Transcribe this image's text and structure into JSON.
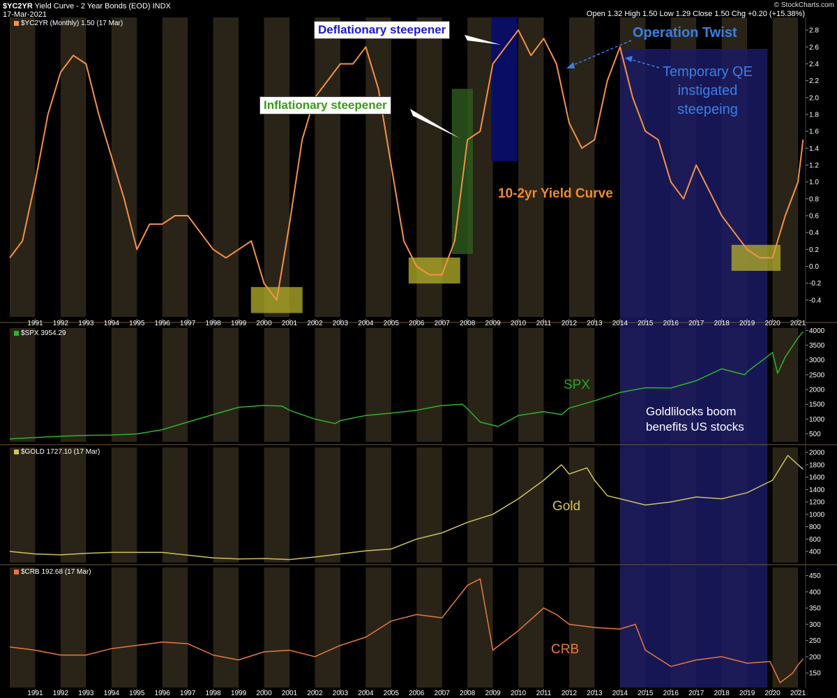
{
  "header": {
    "symbol": "$YC2YR",
    "description": "Yield Curve - 2 Year Bonds (EOD)",
    "exchange": "INDX",
    "date": "17-Mar-2021",
    "ohlc": "Open 1.32  High 1.50  Low 1.29  Close 1.50  Chg +0.20 (+15.38%)",
    "logo": "© StockCharts.com"
  },
  "colors": {
    "background": "#000000",
    "band": "#2a2418",
    "yield": "#f6914a",
    "spx": "#2bb52b",
    "gold": "#cfc35a",
    "crb": "#e8783d",
    "deflation_box": "#0a0f6e",
    "inflation_box": "#2f5d1d",
    "yellow_box": "#b6b12a",
    "qe_zone": "#1b1a63"
  },
  "panels": {
    "yield": {
      "label": "$YC2YR (Monthly) 1.50 (17 Mar)"
    },
    "spx": {
      "label": "$SPX 3954.29"
    },
    "gold": {
      "label": "$GOLD 1727.10 (17 Mar)"
    },
    "crb": {
      "label": "$CRB 192.68 (17 Mar)"
    }
  },
  "annotations": {
    "deflationary": "Deflationary steepener",
    "inflationary": "Inflationary steepener",
    "operation_twist": "Operation Twist",
    "temporary_qe": [
      "Temporary QE",
      "instigated",
      "steepeing"
    ],
    "yield_curve": "10-2yr Yield Curve",
    "spx": "SPX",
    "goldilocks": [
      "Goldlilocks boom",
      "benefits US stocks"
    ],
    "gold": "Gold",
    "crb": "CRB"
  },
  "chart_data": [
    {
      "type": "line",
      "title": "$YC2YR (Monthly) 1.50 (17 Mar)",
      "x": [
        1990.0,
        1990.5,
        1991.0,
        1991.5,
        1992.0,
        1992.5,
        1993.0,
        1993.5,
        1994.0,
        1994.5,
        1995.0,
        1995.5,
        1996.0,
        1996.5,
        1997.0,
        1997.5,
        1998.0,
        1998.5,
        1999.0,
        1999.5,
        2000.0,
        2000.5,
        2001.0,
        2001.5,
        2002.0,
        2002.5,
        2003.0,
        2003.5,
        2004.0,
        2004.5,
        2005.0,
        2005.5,
        2006.0,
        2006.5,
        2007.0,
        2007.5,
        2008.0,
        2008.5,
        2009.0,
        2009.5,
        2010.0,
        2010.5,
        2011.0,
        2011.5,
        2012.0,
        2012.5,
        2013.0,
        2013.5,
        2014.0,
        2014.5,
        2015.0,
        2015.5,
        2016.0,
        2016.5,
        2017.0,
        2017.5,
        2018.0,
        2018.5,
        2019.0,
        2019.5,
        2020.0,
        2020.5,
        2021.0,
        2021.2
      ],
      "values": [
        0.1,
        0.3,
        1.0,
        1.8,
        2.3,
        2.5,
        2.4,
        1.8,
        1.3,
        0.8,
        0.2,
        0.5,
        0.5,
        0.6,
        0.6,
        0.4,
        0.2,
        0.1,
        0.2,
        0.3,
        -0.2,
        -0.4,
        0.5,
        1.5,
        2.0,
        2.2,
        2.4,
        2.4,
        2.6,
        2.1,
        1.2,
        0.3,
        0.0,
        -0.1,
        -0.1,
        0.3,
        1.5,
        1.6,
        2.4,
        2.6,
        2.8,
        2.5,
        2.7,
        2.4,
        1.7,
        1.4,
        1.5,
        2.2,
        2.6,
        2.0,
        1.6,
        1.5,
        1.0,
        0.8,
        1.2,
        0.9,
        0.6,
        0.4,
        0.2,
        0.1,
        0.1,
        0.6,
        1.0,
        1.5
      ],
      "xlim": [
        1990,
        2021.3
      ],
      "ylim": [
        -0.6,
        2.95
      ],
      "yticks": [
        -0.4,
        -0.2,
        0.0,
        0.2,
        0.4,
        0.6,
        0.8,
        1.0,
        1.2,
        1.4,
        1.6,
        1.8,
        2.0,
        2.2,
        2.4,
        2.6,
        2.8
      ]
    },
    {
      "type": "line",
      "title": "$SPX 3954.29",
      "x": [
        1990,
        1991,
        1992,
        1993,
        1994,
        1995,
        1996,
        1997,
        1998,
        1999,
        2000,
        2000.7,
        2001,
        2002,
        2002.8,
        2003,
        2004,
        2005,
        2006,
        2007,
        2007.8,
        2008,
        2008.5,
        2009.2,
        2010,
        2011,
        2011.7,
        2012,
        2013,
        2014,
        2015,
        2016,
        2017,
        2018,
        2018.9,
        2019,
        2020,
        2020.2,
        2020.5,
        2021,
        2021.2
      ],
      "values": [
        330,
        375,
        420,
        450,
        460,
        500,
        640,
        900,
        1150,
        1400,
        1460,
        1440,
        1300,
        1000,
        850,
        950,
        1120,
        1200,
        1300,
        1460,
        1500,
        1350,
        900,
        750,
        1120,
        1250,
        1150,
        1370,
        1620,
        1900,
        2060,
        2050,
        2300,
        2700,
        2500,
        2600,
        3250,
        2550,
        3100,
        3750,
        3954
      ],
      "xlim": [
        1990,
        2021.3
      ],
      "ylim": [
        230,
        4080
      ],
      "yticks": [
        500,
        1000,
        1500,
        2000,
        2500,
        3000,
        3500,
        4000
      ]
    },
    {
      "type": "line",
      "title": "$GOLD 1727.10 (17 Mar)",
      "x": [
        1990,
        1991,
        1992,
        1993,
        1994,
        1995,
        1996,
        1997,
        1998,
        1999,
        2000,
        2001,
        2002,
        2003,
        2004,
        2005,
        2006,
        2007,
        2008,
        2009,
        2010,
        2011,
        2011.7,
        2012,
        2012.7,
        2013,
        2013.5,
        2014,
        2015,
        2016,
        2017,
        2018,
        2019,
        2020,
        2020.6,
        2021,
        2021.2
      ],
      "values": [
        400,
        360,
        345,
        370,
        385,
        385,
        385,
        340,
        295,
        280,
        285,
        270,
        310,
        360,
        410,
        440,
        600,
        700,
        870,
        1000,
        1250,
        1550,
        1800,
        1650,
        1750,
        1550,
        1300,
        1250,
        1150,
        1200,
        1280,
        1250,
        1350,
        1550,
        1950,
        1800,
        1727
      ],
      "xlim": [
        1990,
        2021.3
      ],
      "ylim": [
        220,
        2080
      ],
      "yticks": [
        400,
        600,
        800,
        1000,
        1200,
        1400,
        1600,
        1800,
        2000
      ]
    },
    {
      "type": "line",
      "title": "$CRB 192.68 (17 Mar)",
      "x": [
        1990,
        1991,
        1992,
        1993,
        1994,
        1995,
        1996,
        1997,
        1998,
        1999,
        2000,
        2001,
        2002,
        2003,
        2004,
        2005,
        2006,
        2007,
        2008,
        2008.5,
        2009,
        2009.5,
        2010,
        2011,
        2011.5,
        2012,
        2013,
        2014,
        2014.6,
        2015,
        2016,
        2017,
        2018,
        2019,
        2019.9,
        2020.3,
        2020.8,
        2021,
        2021.2
      ],
      "values": [
        230,
        220,
        205,
        205,
        225,
        235,
        245,
        240,
        205,
        190,
        215,
        220,
        200,
        235,
        260,
        310,
        330,
        320,
        420,
        440,
        220,
        250,
        280,
        350,
        330,
        300,
        290,
        285,
        300,
        220,
        170,
        190,
        200,
        180,
        185,
        120,
        150,
        175,
        193
      ],
      "xlim": [
        1990,
        2021.3
      ],
      "ylim": [
        105,
        475
      ],
      "yticks": [
        150,
        200,
        250,
        300,
        350,
        400,
        450
      ]
    }
  ],
  "x_axis_years": [
    "1991",
    "1992",
    "1993",
    "1994",
    "1995",
    "1996",
    "1997",
    "1998",
    "1999",
    "2000",
    "2001",
    "2002",
    "2003",
    "2004",
    "2005",
    "2006",
    "2007",
    "2008",
    "2009",
    "2010",
    "2011",
    "2012",
    "2013",
    "2014",
    "2015",
    "2016",
    "2017",
    "2018",
    "2019",
    "2020",
    "2021"
  ]
}
